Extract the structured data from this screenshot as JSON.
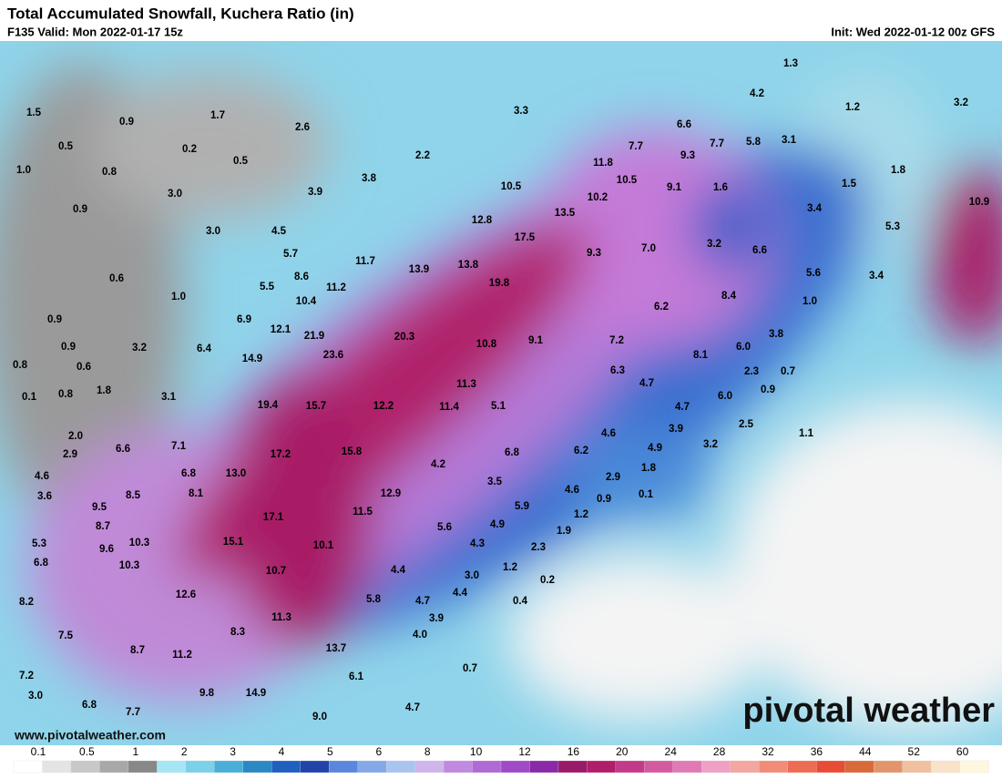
{
  "header": {
    "title": "Total Accumulated Snowfall, Kuchera Ratio (in)",
    "valid": "F135 Valid: Mon 2022-01-17 15z",
    "init": "Init: Wed 2022-01-12 00z GFS"
  },
  "map": {
    "labels": [
      "1.3",
      "4.2",
      "1.2",
      "3.2",
      "1.5",
      "0.9",
      "1.7",
      "2.6",
      "3.3",
      "6.6",
      "0.5",
      "0.2",
      "2.2",
      "7.7",
      "9.3",
      "7.7",
      "5.8",
      "3.1",
      "1.0",
      "0.8",
      "0.5",
      "11.8",
      "10.5",
      "9.1",
      "1.6",
      "1.8",
      "3.0",
      "3.9",
      "3.8",
      "10.5",
      "10.2",
      "1.5",
      "10.9",
      "0.9",
      "3.0",
      "4.5",
      "12.8",
      "13.5",
      "3.4",
      "5.3",
      "17.5",
      "9.3",
      "7.0",
      "3.2",
      "6.6",
      "5.7",
      "11.7",
      "13.9",
      "13.8",
      "5.6",
      "0.6",
      "8.6",
      "11.2",
      "19.8",
      "3.4",
      "5.5",
      "10.4",
      "1.0",
      "8.4",
      "1.0",
      "6.2",
      "0.9",
      "6.9",
      "12.1",
      "21.9",
      "20.3",
      "3.2",
      "6.4",
      "9.1",
      "7.2",
      "10.8",
      "6.0",
      "3.8",
      "0.9",
      "23.6",
      "14.9",
      "8.1",
      "0.8",
      "0.6",
      "6.3",
      "2.3",
      "0.7",
      "11.3",
      "4.7",
      "1.8",
      "0.1",
      "0.8",
      "3.1",
      "0.9",
      "6.0",
      "19.4",
      "15.7",
      "12.2",
      "11.4",
      "5.1",
      "4.7",
      "3.9",
      "4.6",
      "2.5",
      "1.1",
      "2.0",
      "7.1",
      "6.2",
      "4.9",
      "3.2",
      "6.6",
      "2.9",
      "17.2",
      "15.8",
      "6.8",
      "4.2",
      "1.8",
      "4.6",
      "6.8",
      "13.0",
      "3.5",
      "2.9",
      "4.6",
      "0.1",
      "3.6",
      "8.5",
      "8.1",
      "12.9",
      "0.9",
      "5.9",
      "9.5",
      "17.1",
      "11.5",
      "1.2",
      "8.7",
      "5.6",
      "4.9",
      "1.9",
      "5.3",
      "10.3",
      "15.1",
      "10.1",
      "4.3",
      "9.6",
      "2.3",
      "6.8",
      "10.3",
      "10.7",
      "4.4",
      "3.0",
      "1.2",
      "0.2",
      "12.6",
      "4.4",
      "5.8",
      "4.7",
      "8.2",
      "0.4",
      "11.3",
      "3.9",
      "8.3",
      "7.5",
      "4.0",
      "13.7",
      "8.7",
      "11.2",
      "0.7",
      "7.2",
      "6.1",
      "9.8",
      "14.9",
      "3.0",
      "6.8",
      "7.7",
      "4.7",
      "9.0"
    ]
  },
  "branding": {
    "logo": "pivotal weather",
    "url": "www.pivotalweather.com"
  },
  "colorbar": {
    "labels": [
      "0.1",
      "0.5",
      "1",
      "2",
      "3",
      "4",
      "5",
      "6",
      "8",
      "10",
      "12",
      "16",
      "20",
      "24",
      "28",
      "32",
      "36",
      "44",
      "52",
      "60"
    ]
  }
}
